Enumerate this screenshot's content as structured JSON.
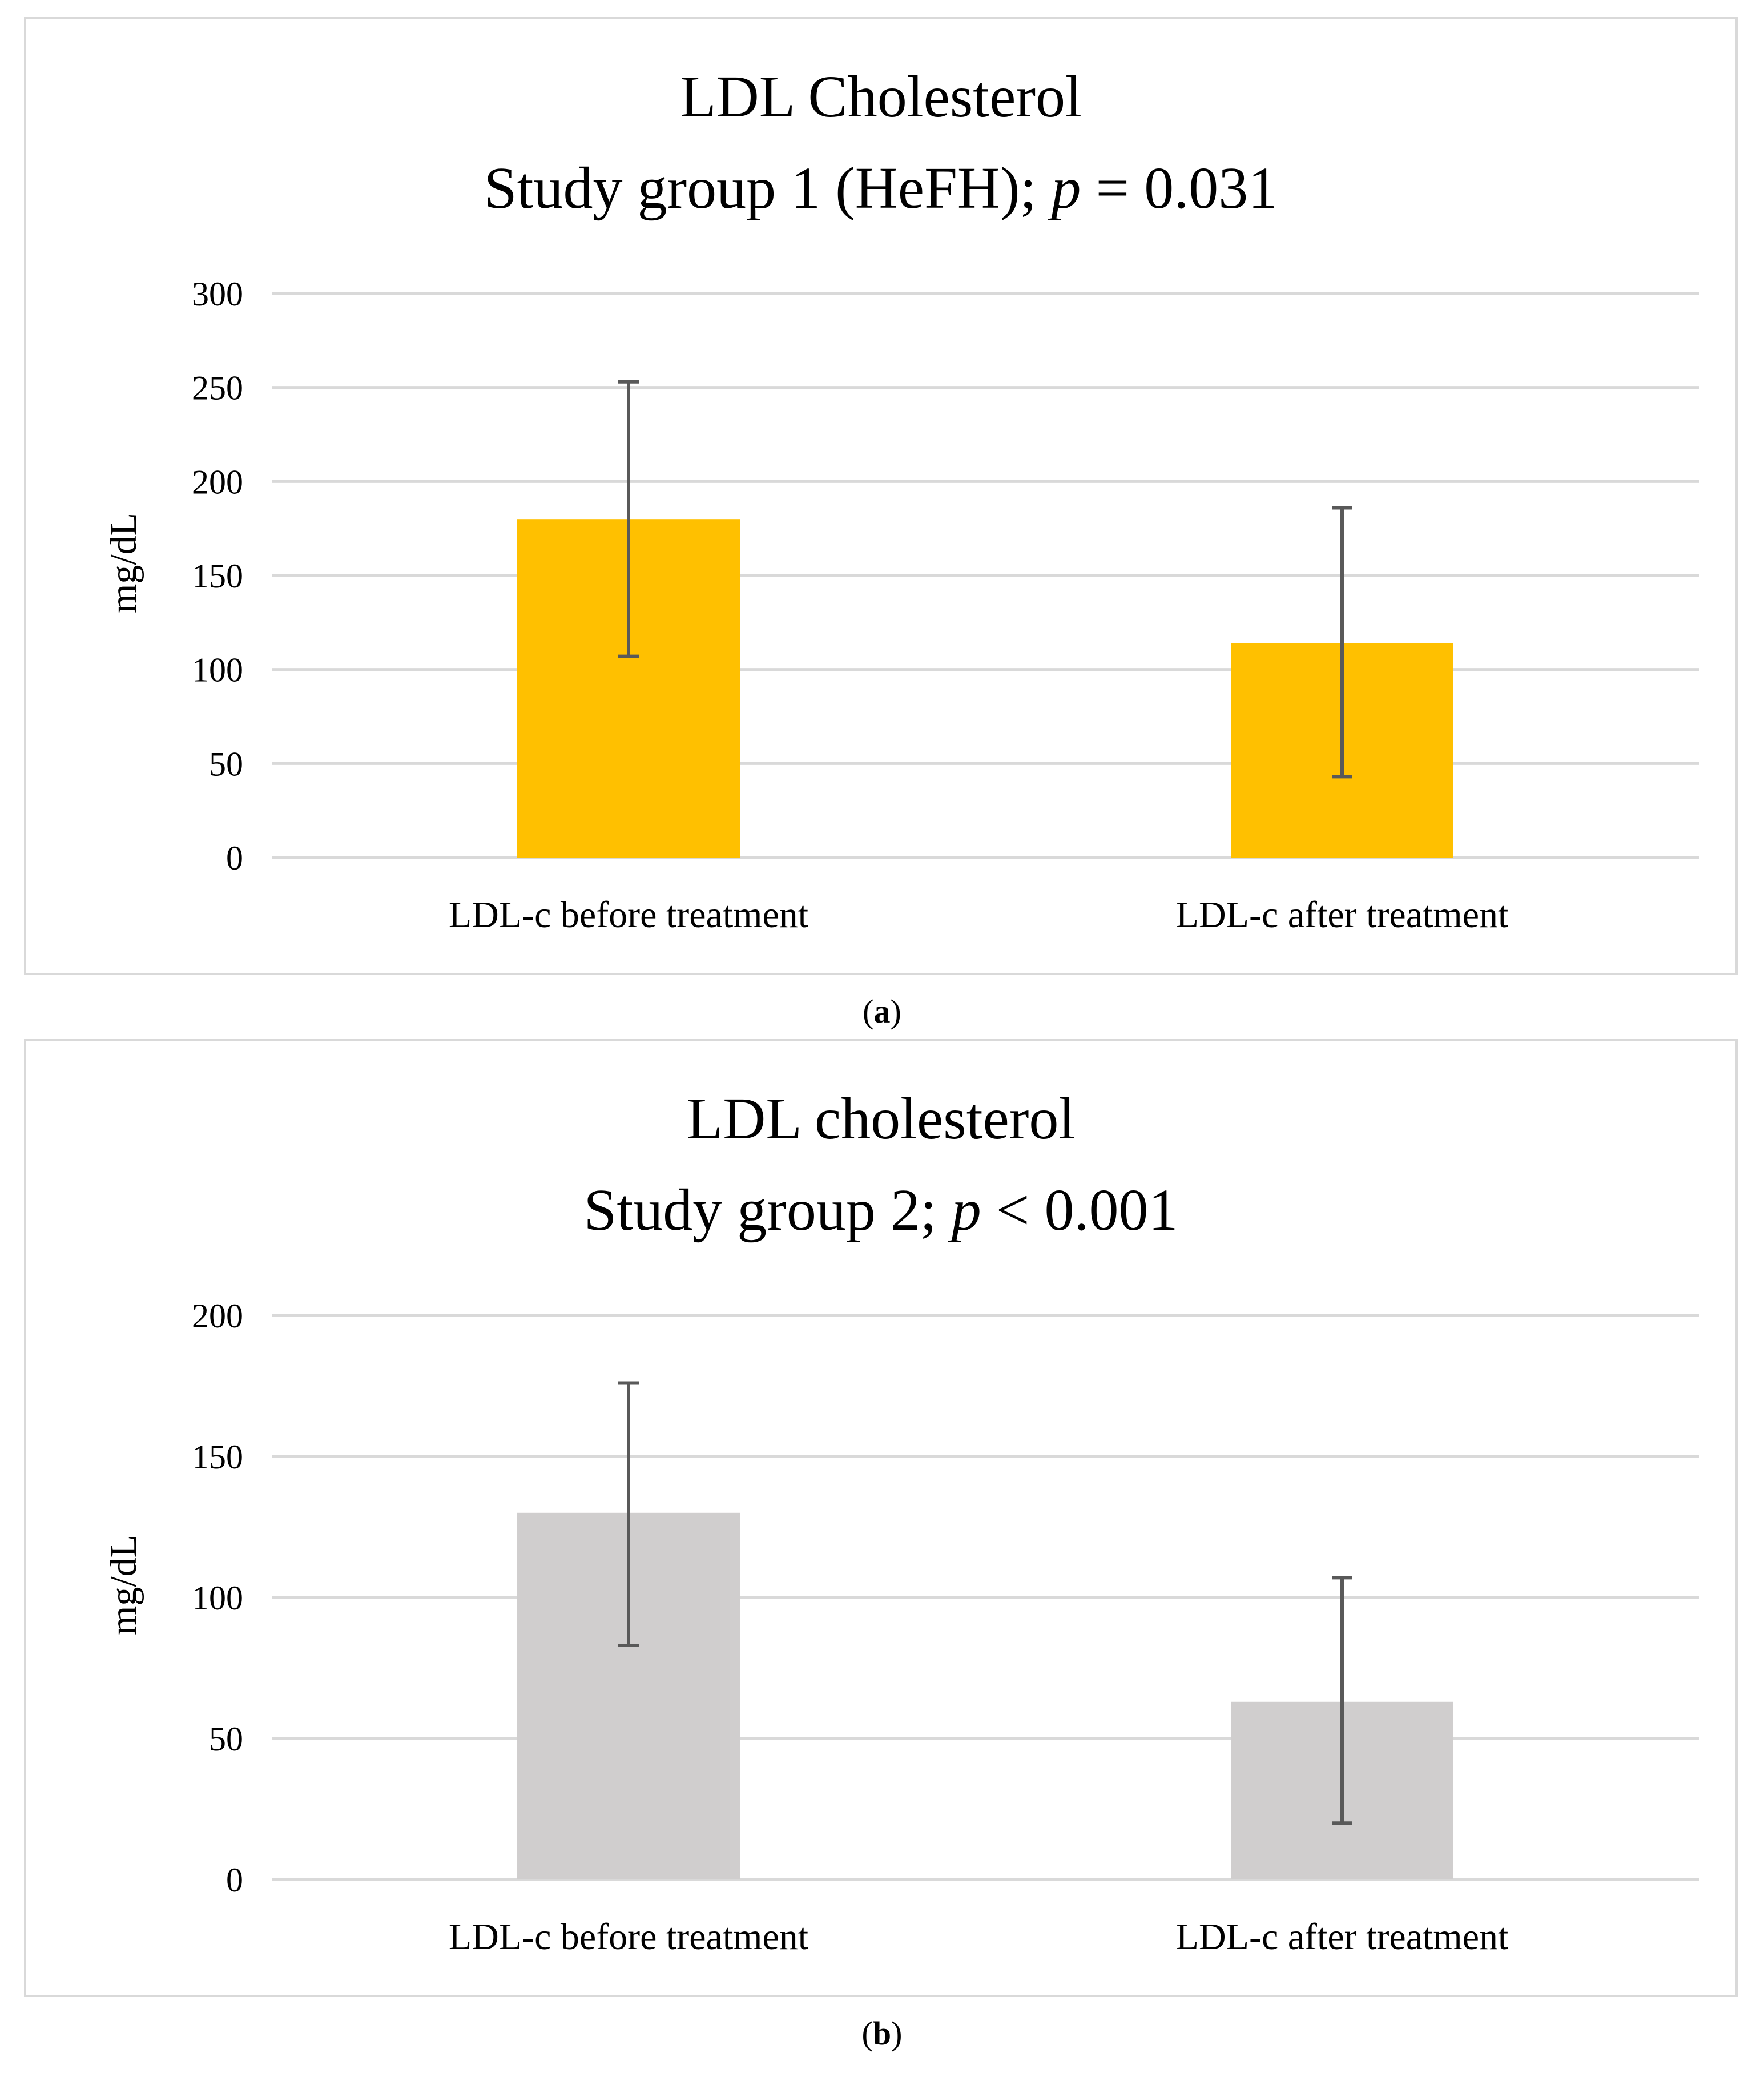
{
  "chart_data": [
    {
      "type": "bar",
      "title": "LDL Cholesterol",
      "subtitle_prefix": "Study group 1 (HeFH); ",
      "subtitle_p": "p",
      "subtitle_suffix": " = 0.031",
      "categories": [
        "LDL-c before treatment",
        "LDL-c after treatment"
      ],
      "values": [
        180,
        114
      ],
      "error_low": [
        107,
        43
      ],
      "error_high": [
        253,
        186
      ],
      "ylabel": "mg/dL",
      "xlabel": "",
      "ylim": [
        0,
        300
      ],
      "yticks": [
        0,
        50,
        100,
        150,
        200,
        250,
        300
      ],
      "bar_color": "#FFC000",
      "grid": true,
      "caption_letter": "a"
    },
    {
      "type": "bar",
      "title": "LDL cholesterol",
      "subtitle_prefix": "Study group 2; ",
      "subtitle_p": "p",
      "subtitle_suffix": " < 0.001",
      "categories": [
        "LDL-c before treatment",
        "LDL-c after treatment"
      ],
      "values": [
        130,
        63
      ],
      "error_low": [
        83,
        20
      ],
      "error_high": [
        176,
        107
      ],
      "ylabel": "mg/dL",
      "xlabel": "",
      "ylim": [
        0,
        200
      ],
      "yticks": [
        0,
        50,
        100,
        150,
        200
      ],
      "bar_color": "#D0CECE",
      "grid": true,
      "caption_letter": "b"
    }
  ],
  "colors": {
    "grid": "#d9d9d9",
    "error_bar": "#595959",
    "border": "#d9d9d9"
  }
}
